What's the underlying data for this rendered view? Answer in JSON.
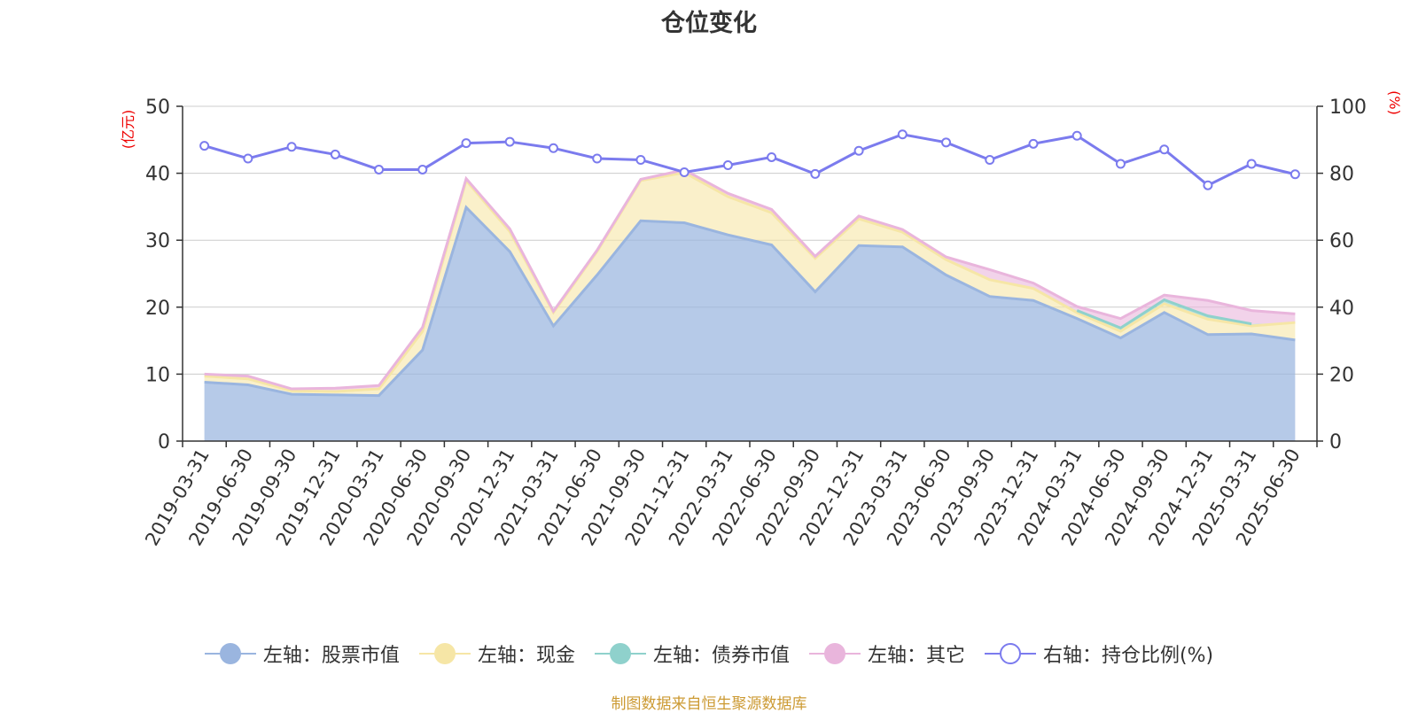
{
  "title": "仓位变化",
  "source": "制图数据来自恒生聚源数据库",
  "chart_data": {
    "type": "area",
    "categories": [
      "2019-03-31",
      "2019-06-30",
      "2019-09-30",
      "2019-12-31",
      "2020-03-31",
      "2020-06-30",
      "2020-09-30",
      "2020-12-31",
      "2021-03-31",
      "2021-06-30",
      "2021-09-30",
      "2021-12-31",
      "2022-03-31",
      "2022-06-30",
      "2022-09-30",
      "2022-12-31",
      "2023-03-31",
      "2023-06-30",
      "2023-09-30",
      "2023-12-31",
      "2024-03-31",
      "2024-06-30",
      "2024-09-30",
      "2024-12-31",
      "2025-03-31",
      "2025-06-30"
    ],
    "left_axis": {
      "unit": "(亿元)",
      "ylim": [
        0,
        50
      ],
      "ticks": [
        "0",
        "10",
        "20",
        "30",
        "40",
        "50"
      ]
    },
    "right_axis": {
      "unit": "(%)",
      "ylim": [
        0,
        100
      ],
      "ticks": [
        "0",
        "20",
        "40",
        "60",
        "80",
        "100"
      ]
    },
    "grid": true,
    "legend_position": "bottom",
    "series": [
      {
        "name": "左轴：股票市值",
        "axis": "left",
        "kind": "stacked-area",
        "color": "#9ab5df",
        "values": [
          8.8,
          8.4,
          7.0,
          6.9,
          6.8,
          13.6,
          34.9,
          28.3,
          17.2,
          24.8,
          32.9,
          32.6,
          30.8,
          29.3,
          22.3,
          29.2,
          29.0,
          24.8,
          21.6,
          21.0,
          18.3,
          15.4,
          19.2,
          15.9,
          16.0,
          15.1
        ]
      },
      {
        "name": "左轴：现金",
        "axis": "left",
        "kind": "stacked-area",
        "color": "#f6e6a6",
        "values": [
          0.9,
          0.9,
          0.5,
          0.5,
          1.0,
          2.8,
          4.0,
          3.0,
          2.0,
          3.5,
          6.0,
          7.5,
          5.7,
          4.8,
          5.0,
          4.0,
          2.2,
          2.3,
          2.5,
          1.8,
          0.9,
          1.0,
          1.3,
          2.3,
          1.2,
          2.6
        ]
      },
      {
        "name": "左轴：债券市值",
        "axis": "left",
        "kind": "stacked-area",
        "color": "#8fd1cc",
        "values": [
          0,
          0,
          0,
          0,
          0,
          0,
          0,
          0,
          0,
          0,
          0,
          0,
          0,
          0,
          0,
          0,
          0,
          0,
          0,
          0,
          0.3,
          0.5,
          0.6,
          0.5,
          0.3,
          0
        ]
      },
      {
        "name": "左轴：其它",
        "axis": "left",
        "kind": "stacked-area",
        "color": "#e9b5dc",
        "values": [
          0.3,
          0.4,
          0.3,
          0.5,
          0.5,
          0.6,
          0.3,
          0.4,
          0.2,
          0.2,
          0.2,
          0.4,
          0.5,
          0.5,
          0.3,
          0.4,
          0.4,
          0.4,
          1.5,
          0.8,
          0.6,
          1.4,
          0.7,
          2.3,
          2.0,
          1.3
        ]
      },
      {
        "name": "右轴：持仓比例(%)",
        "axis": "right",
        "kind": "line",
        "color": "#7b7bee",
        "values": [
          88.2,
          84.4,
          87.9,
          85.6,
          81.1,
          81.1,
          89.0,
          89.4,
          87.5,
          84.4,
          84.0,
          80.3,
          82.4,
          84.8,
          79.8,
          86.7,
          91.6,
          89.2,
          84.0,
          88.8,
          91.2,
          82.8,
          87.1,
          76.4,
          82.8,
          79.7
        ]
      }
    ]
  }
}
